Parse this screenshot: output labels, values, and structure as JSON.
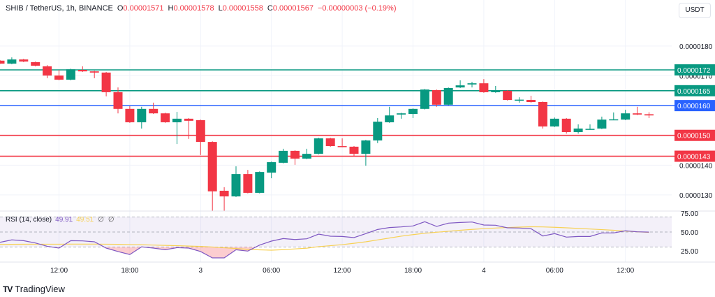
{
  "header": {
    "symbol": "SHIB / TetherUS, 1h, BINANCE",
    "open_label": "O",
    "open": "0.00001571",
    "high_label": "H",
    "high": "0.00001578",
    "low_label": "L",
    "low": "0.00001558",
    "close_label": "C",
    "close": "0.00001567",
    "change": "−0.00000003 (−0.19%)"
  },
  "currency_button": "USDT",
  "rsi_legend": {
    "name": "RSI (14, close)",
    "rsi": "49.91",
    "ma": "49.51",
    "n1": "∅",
    "n2": "∅"
  },
  "branding": {
    "logo": "TV",
    "name": "TradingView"
  },
  "colors": {
    "up": "#089981",
    "down": "#f23645",
    "blue": "#2962ff",
    "rsi": "#7e57c2",
    "rsi_ma": "#f7d154"
  },
  "chart_data": {
    "type": "candlestick",
    "title": "SHIB / TetherUS, 1h, BINANCE",
    "ylim": [
      1.24e-05,
      1.8e-05
    ],
    "y_ticks": [
      {
        "value": 1.8e-05,
        "label": "0.0000180"
      },
      {
        "value": 1.7e-05,
        "label": "0.0000170"
      },
      {
        "value": 1.4e-05,
        "label": "0.0000140"
      },
      {
        "value": 1.3e-05,
        "label": "0.0000130"
      }
    ],
    "x_ticks": [
      {
        "index": 5,
        "label": "12:00"
      },
      {
        "index": 11,
        "label": "18:00"
      },
      {
        "index": 17,
        "label": "3"
      },
      {
        "index": 23,
        "label": "06:00"
      },
      {
        "index": 29,
        "label": "12:00"
      },
      {
        "index": 35,
        "label": "18:00"
      },
      {
        "index": 41,
        "label": "4"
      },
      {
        "index": 47,
        "label": "06:00"
      },
      {
        "index": 53,
        "label": "12:00"
      }
    ],
    "ohlc": [
      [
        1.751e-05,
        1.753e-05,
        1.74e-05,
        1.741e-05
      ],
      [
        1.741e-05,
        1.762e-05,
        1.739e-05,
        1.755e-05
      ],
      [
        1.755e-05,
        1.757e-05,
        1.746e-05,
        1.748e-05
      ],
      [
        1.746e-05,
        1.748e-05,
        1.732e-05,
        1.734e-05
      ],
      [
        1.732e-05,
        1.736e-05,
        1.692e-05,
        1.701e-05
      ],
      [
        1.701e-05,
        1.72e-05,
        1.685e-05,
        1.687e-05
      ],
      [
        1.687e-05,
        1.724e-05,
        1.685e-05,
        1.722e-05
      ],
      [
        1.72e-05,
        1.732e-05,
        1.713e-05,
        1.715e-05
      ],
      [
        1.715e-05,
        1.717e-05,
        1.692e-05,
        1.711e-05
      ],
      [
        1.711e-05,
        1.713e-05,
        1.631e-05,
        1.645e-05
      ],
      [
        1.645e-05,
        1.661e-05,
        1.574e-05,
        1.589e-05
      ],
      [
        1.589e-05,
        1.598e-05,
        1.542e-05,
        1.544e-05
      ],
      [
        1.544e-05,
        1.596e-05,
        1.523e-05,
        1.589e-05
      ],
      [
        1.589e-05,
        1.61e-05,
        1.572e-05,
        1.574e-05
      ],
      [
        1.574e-05,
        1.576e-05,
        1.542e-05,
        1.544e-05
      ],
      [
        1.544e-05,
        1.579e-05,
        1.471e-05,
        1.556e-05
      ],
      [
        1.556e-05,
        1.558e-05,
        1.488e-05,
        1.549e-05
      ],
      [
        1.551e-05,
        1.553e-05,
        1.434e-05,
        1.478e-05
      ],
      [
        1.478e-05,
        1.48e-05,
        1.246e-05,
        1.312e-05
      ],
      [
        1.314e-05,
        1.326e-05,
        1.246e-05,
        1.295e-05
      ],
      [
        1.295e-05,
        1.396e-05,
        1.293e-05,
        1.37e-05
      ],
      [
        1.37e-05,
        1.384e-05,
        1.305e-05,
        1.307e-05
      ],
      [
        1.307e-05,
        1.379e-05,
        1.305e-05,
        1.377e-05
      ],
      [
        1.375e-05,
        1.412e-05,
        1.356e-05,
        1.41e-05
      ],
      [
        1.408e-05,
        1.455e-05,
        1.406e-05,
        1.448e-05
      ],
      [
        1.448e-05,
        1.45e-05,
        1.401e-05,
        1.422e-05
      ],
      [
        1.422e-05,
        1.455e-05,
        1.42e-05,
        1.438e-05
      ],
      [
        1.438e-05,
        1.492e-05,
        1.436e-05,
        1.49e-05
      ],
      [
        1.49e-05,
        1.492e-05,
        1.462e-05,
        1.464e-05
      ],
      [
        1.464e-05,
        1.49e-05,
        1.46e-05,
        1.462e-05
      ],
      [
        1.462e-05,
        1.464e-05,
        1.431e-05,
        1.438e-05
      ],
      [
        1.438e-05,
        1.485e-05,
        1.398e-05,
        1.483e-05
      ],
      [
        1.483e-05,
        1.558e-05,
        1.474e-05,
        1.546e-05
      ],
      [
        1.544e-05,
        1.596e-05,
        1.542e-05,
        1.567e-05
      ],
      [
        1.57e-05,
        1.576e-05,
        1.556e-05,
        1.574e-05
      ],
      [
        1.572e-05,
        1.591e-05,
        1.558e-05,
        1.589e-05
      ],
      [
        1.589e-05,
        1.656e-05,
        1.587e-05,
        1.654e-05
      ],
      [
        1.652e-05,
        1.654e-05,
        1.596e-05,
        1.603e-05
      ],
      [
        1.603e-05,
        1.661e-05,
        1.601e-05,
        1.659e-05
      ],
      [
        1.661e-05,
        1.685e-05,
        1.659e-05,
        1.668e-05
      ],
      [
        1.671e-05,
        1.68e-05,
        1.661e-05,
        1.675e-05
      ],
      [
        1.675e-05,
        1.689e-05,
        1.643e-05,
        1.645e-05
      ],
      [
        1.645e-05,
        1.666e-05,
        1.643e-05,
        1.65e-05
      ],
      [
        1.65e-05,
        1.652e-05,
        1.617e-05,
        1.619e-05
      ],
      [
        1.619e-05,
        1.628e-05,
        1.61e-05,
        1.62e-05
      ],
      [
        1.619e-05,
        1.633e-05,
        1.61e-05,
        1.612e-05
      ],
      [
        1.612e-05,
        1.614e-05,
        1.523e-05,
        1.53e-05
      ],
      [
        1.53e-05,
        1.56e-05,
        1.528e-05,
        1.556e-05
      ],
      [
        1.556e-05,
        1.558e-05,
        1.506e-05,
        1.511e-05
      ],
      [
        1.511e-05,
        1.537e-05,
        1.506e-05,
        1.523e-05
      ],
      [
        1.521e-05,
        1.537e-05,
        1.519e-05,
        1.522e-05
      ],
      [
        1.523e-05,
        1.563e-05,
        1.521e-05,
        1.553e-05
      ],
      [
        1.553e-05,
        1.577e-05,
        1.552e-05,
        1.554e-05
      ],
      [
        1.553e-05,
        1.586e-05,
        1.551e-05,
        1.574e-05
      ],
      [
        1.574e-05,
        1.596e-05,
        1.568e-05,
        1.57e-05
      ],
      [
        1.571e-05,
        1.578e-05,
        1.558e-05,
        1.567e-05
      ]
    ],
    "levels": [
      {
        "value": 1.72e-05,
        "label": "0.0000172",
        "color": "#089981"
      },
      {
        "value": 1.65e-05,
        "label": "0.0000165",
        "color": "#089981"
      },
      {
        "value": 1.6e-05,
        "label": "0.0000160",
        "color": "#2962ff"
      },
      {
        "value": 1.5e-05,
        "label": "0.0000150",
        "color": "#f23645"
      },
      {
        "value": 1.43e-05,
        "label": "0.0000143",
        "color": "#f23645"
      }
    ],
    "rsi": {
      "ylim": [
        0,
        100
      ],
      "bands": [
        30,
        50,
        70
      ],
      "y_ticks": [
        {
          "value": 75,
          "label": "75.00"
        },
        {
          "value": 50,
          "label": "50.00"
        },
        {
          "value": 25,
          "label": "25.00"
        }
      ],
      "values": [
        36.3,
        39.5,
        38.5,
        35.4,
        31.0,
        28.6,
        38.5,
        38.2,
        37.0,
        28.6,
        24.0,
        20.0,
        30.2,
        28.6,
        26.4,
        29.2,
        28.6,
        24.0,
        15.6,
        15.6,
        26.4,
        24.6,
        32.6,
        37.9,
        41.3,
        40.0,
        41.0,
        47.2,
        44.4,
        44.1,
        42.6,
        47.9,
        53.4,
        55.9,
        56.8,
        58.1,
        63.7,
        57.4,
        61.8,
        62.7,
        63.3,
        59.3,
        59.0,
        55.6,
        55.3,
        54.4,
        44.7,
        47.9,
        43.2,
        44.1,
        44.1,
        48.8,
        48.8,
        51.6,
        50.3,
        49.91
      ],
      "ma": [
        33.5,
        33.6,
        33.7,
        33.8,
        33.8,
        33.8,
        33.9,
        33.9,
        33.9,
        33.8,
        33.6,
        33.3,
        33.0,
        32.6,
        32.2,
        31.8,
        31.3,
        30.8,
        30.0,
        29.0,
        28.0,
        27.0,
        26.3,
        25.8,
        26.5,
        27.5,
        28.5,
        30.5,
        31.8,
        33.2,
        35.0,
        37.0,
        39.5,
        42.0,
        44.5,
        46.5,
        48.3,
        49.7,
        51.0,
        52.3,
        53.5,
        54.5,
        55.3,
        56.0,
        56.5,
        57.0,
        56.8,
        56.3,
        55.6,
        54.8,
        54.0,
        53.2,
        52.3,
        51.2,
        50.3,
        49.51
      ]
    }
  }
}
